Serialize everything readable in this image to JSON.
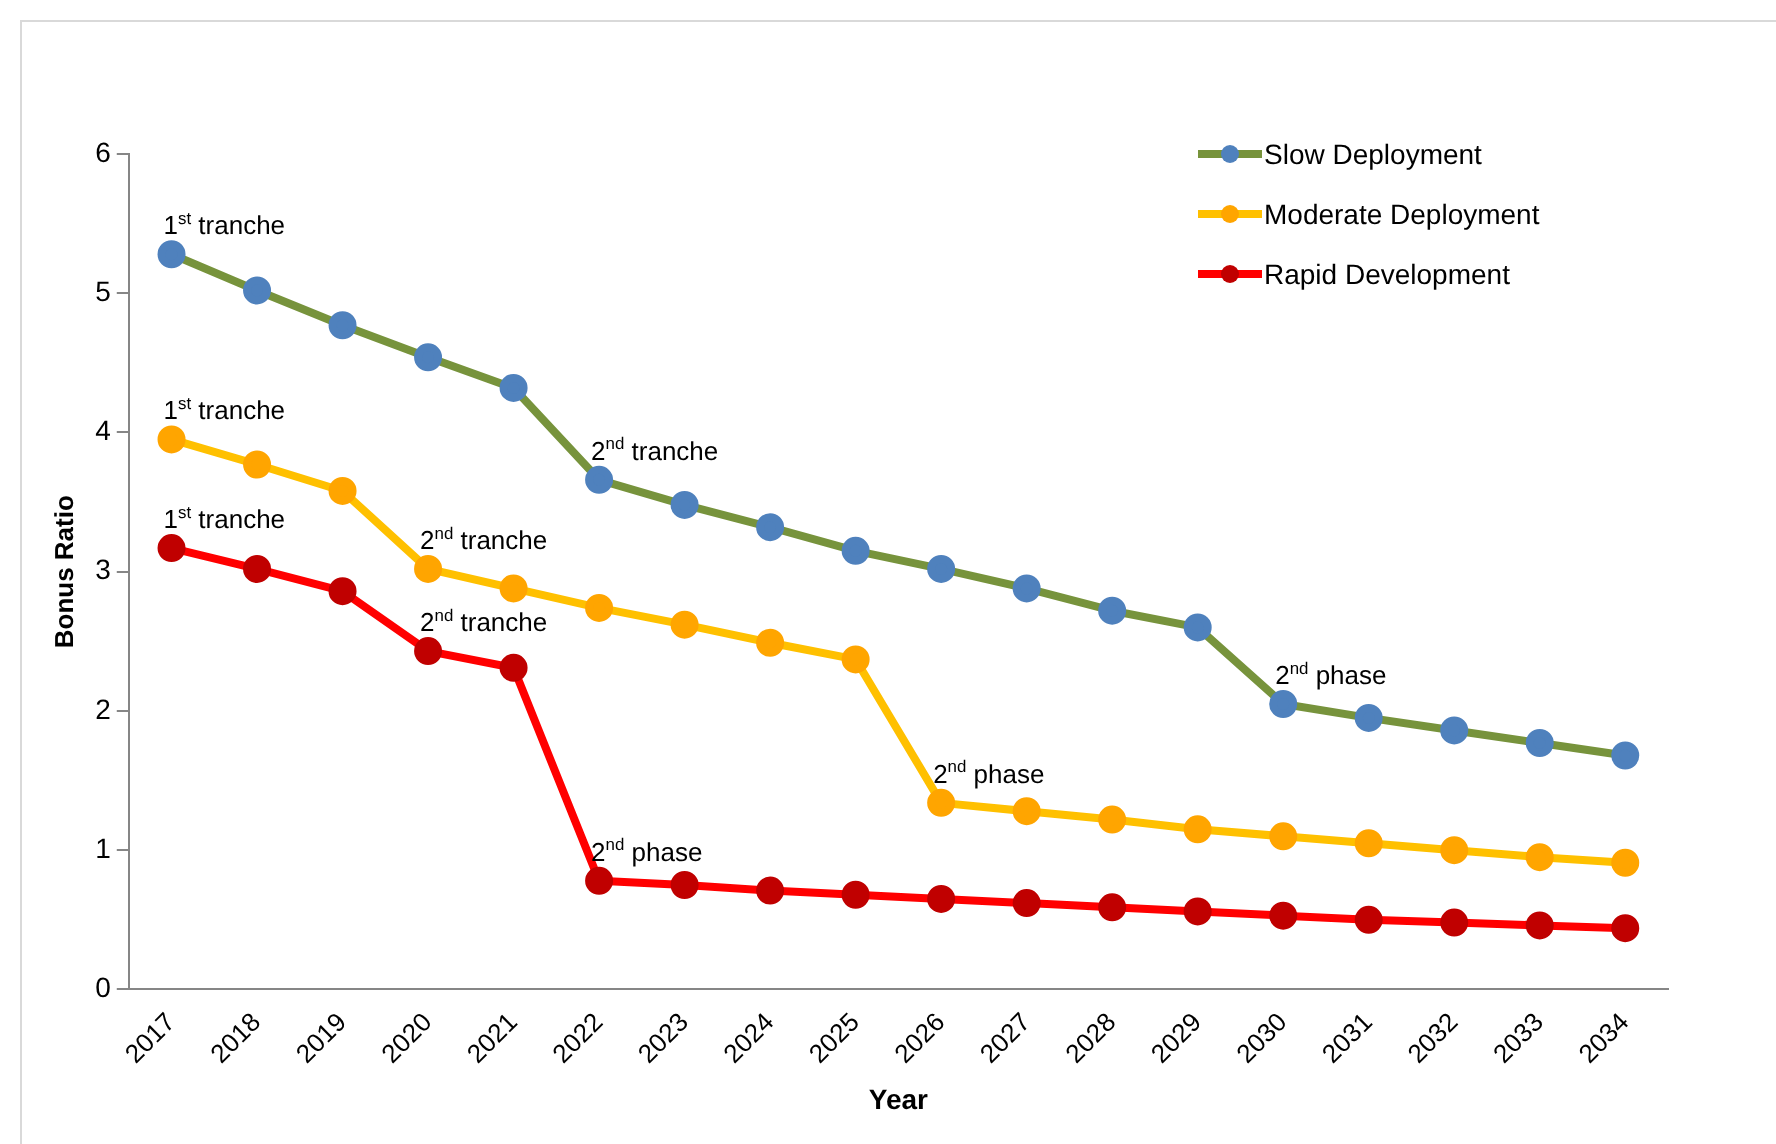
{
  "chart_data": {
    "type": "line",
    "xlabel": "Year",
    "ylabel": "Bonus Ratio",
    "categories": [
      "2017",
      "2018",
      "2019",
      "2020",
      "2021",
      "2022",
      "2023",
      "2024",
      "2025",
      "2026",
      "2027",
      "2028",
      "2029",
      "2030",
      "2031",
      "2032",
      "2033",
      "2034"
    ],
    "series": [
      {
        "name": "Slow Deployment",
        "color": "#77933c",
        "colors": [
          "#4f81bd",
          "#4f81bd",
          "#4f81bd",
          "#4f81bd",
          "#4f81bd",
          "#4f81bd",
          "#4f81bd",
          "#4f81bd",
          "#4f81bd",
          "#4f81bd",
          "#4f81bd",
          "#4f81bd",
          "#4f81bd",
          "#4f81bd",
          "#4f81bd",
          "#4f81bd",
          "#4f81bd",
          "#4f81bd"
        ],
        "values": [
          5.28,
          5.02,
          4.77,
          4.54,
          4.32,
          3.66,
          3.48,
          3.32,
          3.15,
          3.02,
          2.88,
          2.72,
          2.6,
          2.05,
          1.95,
          1.86,
          1.77,
          1.68
        ]
      },
      {
        "name": "Moderate Deployment",
        "color": "#ffc000",
        "colors": [
          "#ffa500",
          "#ffa500",
          "#ffa500",
          "#ffa500",
          "#ffa500",
          "#ffa500",
          "#ffa500",
          "#ffa500",
          "#ffa500",
          "#ffa500",
          "#ffa500",
          "#ffa500",
          "#ffa500",
          "#ffa500",
          "#ffa500",
          "#ffa500",
          "#ffa500",
          "#ffa500"
        ],
        "values": [
          3.95,
          3.77,
          3.58,
          3.02,
          2.88,
          2.74,
          2.62,
          2.49,
          2.37,
          1.34,
          1.28,
          1.22,
          1.15,
          1.1,
          1.05,
          1.0,
          0.95,
          0.91
        ]
      },
      {
        "name": "Rapid Development",
        "color": "#ff0000",
        "colors": [
          "#c00000",
          "#c00000",
          "#c00000",
          "#c00000",
          "#c00000",
          "#c00000",
          "#c00000",
          "#c00000",
          "#c00000",
          "#c00000",
          "#c00000",
          "#c00000",
          "#c00000",
          "#c00000",
          "#c00000",
          "#c00000",
          "#c00000",
          "#c00000"
        ],
        "values": [
          3.17,
          3.02,
          2.86,
          2.43,
          2.31,
          0.78,
          0.75,
          0.71,
          0.68,
          0.65,
          0.62,
          0.59,
          0.56,
          0.53,
          0.5,
          0.48,
          0.46,
          0.44
        ]
      }
    ],
    "ylim": [
      0,
      6
    ],
    "yticks": [
      0,
      1,
      2,
      3,
      4,
      5,
      6
    ],
    "grid": false,
    "legend": "top right",
    "marker": "circle",
    "line_style": "solid",
    "annotations": [
      {
        "text": "1$^{st}$ tranche",
        "x": "2017",
        "y": 5.28
      },
      {
        "text": "1$^{st}$ tranche",
        "x": "2017",
        "y": 3.95
      },
      {
        "text": "1$^{st}$ tranche",
        "x": "2017",
        "y": 3.17
      },
      {
        "text": "2$^{nd}$ tranche",
        "x": "2022",
        "y": 3.66
      },
      {
        "text": "2$^{nd}$ tranche",
        "x": "2020",
        "y": 3.02
      },
      {
        "text": "2$^{nd}$ tranche",
        "x": "2020",
        "y": 2.43
      },
      {
        "text": "2$^{nd}$ phase",
        "x": "2022",
        "y": 0.78
      },
      {
        "text": "2$^{nd}$ phase",
        "x": "2026",
        "y": 1.34
      },
      {
        "text": "2$^{nd}$ phase",
        "x": "2030",
        "y": 2.05
      }
    ]
  }
}
